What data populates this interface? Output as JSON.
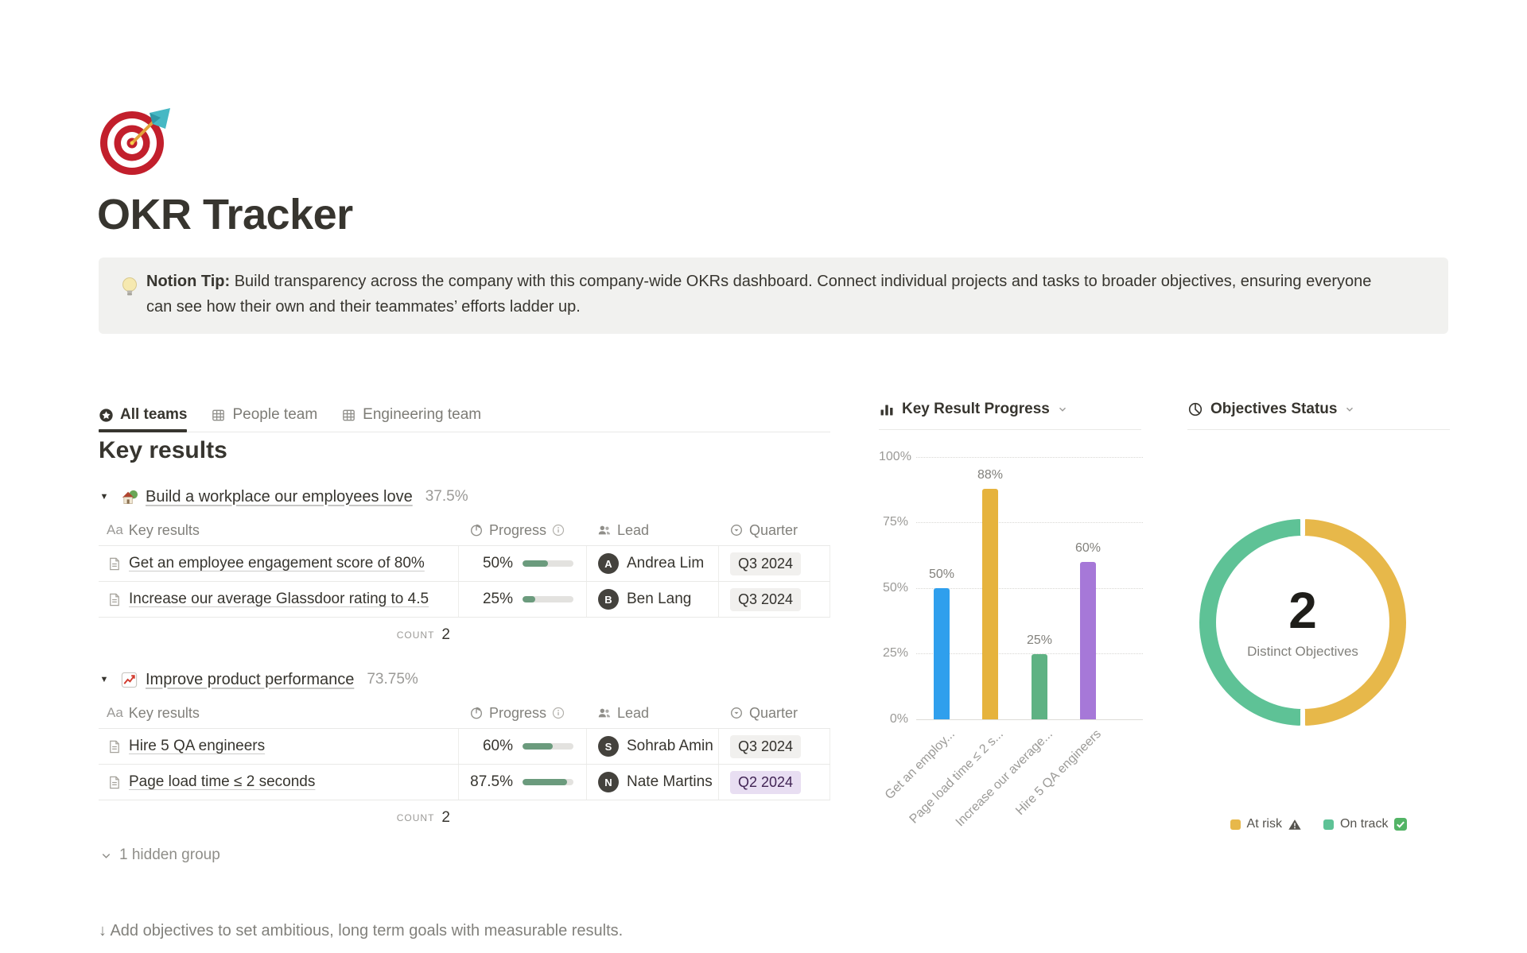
{
  "page": {
    "title": "OKR Tracker",
    "icon": "target-emoji"
  },
  "callout": {
    "icon": "lightbulb-emoji",
    "bold_prefix": "Notion Tip:",
    "text": "Build transparency across the company with this company-wide OKRs dashboard. Connect individual projects and tasks to broader objectives, ensuring everyone can see how their own and their teammates’ efforts ladder up."
  },
  "tabs": [
    {
      "label": "All teams",
      "icon": "star-circle-icon",
      "active": true
    },
    {
      "label": "People team",
      "icon": "table-icon",
      "active": false
    },
    {
      "label": "Engineering team",
      "icon": "table-icon",
      "active": false
    }
  ],
  "key_results": {
    "heading": "Key results",
    "name_column_icon": "Aa",
    "columns": {
      "name": "Key results",
      "progress": "Progress",
      "lead": "Lead",
      "quarter": "Quarter"
    },
    "groups": [
      {
        "emoji": "house-with-garden",
        "title": "Build a workplace our employees love",
        "percent": "37.5%",
        "rows": [
          {
            "name": "Get an employee engagement score of 80%",
            "progress": "50%",
            "progress_value": 50,
            "lead": "Andrea Lim",
            "quarter": "Q3 2024",
            "quarter_color": "gray"
          },
          {
            "name": "Increase our average Glassdoor rating to 4.5",
            "progress": "25%",
            "progress_value": 25,
            "lead": "Ben Lang",
            "quarter": "Q3 2024",
            "quarter_color": "gray"
          }
        ],
        "count_label": "COUNT",
        "count": "2"
      },
      {
        "emoji": "chart-increasing",
        "title": "Improve product performance",
        "percent": "73.75%",
        "rows": [
          {
            "name": "Hire 5 QA engineers",
            "progress": "60%",
            "progress_value": 60,
            "lead": "Sohrab Amin",
            "quarter": "Q3 2024",
            "quarter_color": "gray"
          },
          {
            "name": "Page load time ≤ 2 seconds",
            "progress": "87.5%",
            "progress_value": 87.5,
            "lead": "Nate Martins",
            "quarter": "Q2 2024",
            "quarter_color": "purple"
          }
        ],
        "count_label": "COUNT",
        "count": "2"
      }
    ],
    "hidden_group_label": "1 hidden group"
  },
  "footer_hint": "↓ Add objectives to set ambitious, long term goals with measurable results.",
  "colors": {
    "progress_fill": "#6b9b7d",
    "divider": "#e9e9e7",
    "callout_bg": "#f1f1ef"
  },
  "chart_data": [
    {
      "type": "bar",
      "title": "Key Result Progress",
      "categories": [
        "Get an employ...",
        "Page load time ≤ 2 s...",
        "Increase our average...",
        "Hire 5 QA engineers"
      ],
      "values": [
        50,
        88,
        25,
        60
      ],
      "data_labels": [
        "50%",
        "88%",
        "25%",
        "60%"
      ],
      "bar_colors": [
        "#2f9fed",
        "#e6b33d",
        "#5eb283",
        "#a678d8"
      ],
      "xlabel": "",
      "ylabel": "",
      "ylim": [
        0,
        100
      ],
      "yticks": [
        "0%",
        "25%",
        "50%",
        "75%",
        "100%"
      ],
      "grid": "dotted-horizontal",
      "legend_position": "none"
    },
    {
      "type": "pie",
      "title": "Objectives Status",
      "donut": true,
      "center_value": "2",
      "center_label": "Distinct Objectives",
      "slices": [
        {
          "label": "At risk",
          "value": 1,
          "color": "#e7b84a",
          "status_icon": "warning"
        },
        {
          "label": "On track",
          "value": 1,
          "color": "#5ec296",
          "status_icon": "check"
        }
      ],
      "legend_position": "bottom"
    }
  ]
}
